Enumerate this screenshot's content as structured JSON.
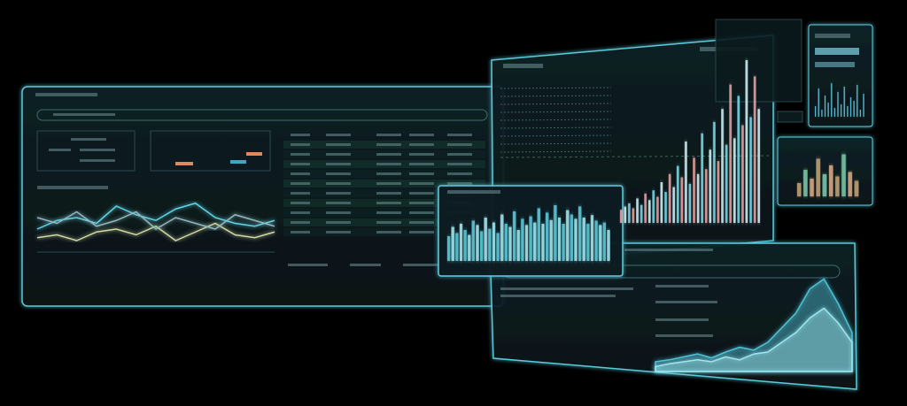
{
  "panels": {
    "main_bars": {
      "ylim": [
        0,
        100
      ],
      "colors": [
        "#f0a8a8",
        "#d8fbff",
        "#7fe3f0"
      ],
      "values": [
        8,
        10,
        12,
        9,
        15,
        11,
        18,
        14,
        20,
        16,
        25,
        19,
        30,
        22,
        35,
        28,
        50,
        24,
        40,
        30,
        55,
        33,
        45,
        62,
        38,
        70,
        48,
        85,
        52,
        78,
        60,
        100,
        65,
        90,
        70
      ]
    },
    "mid_bars": {
      "ylim": [
        0,
        100
      ],
      "colors": [
        "#5fd4e6",
        "#a9f2fa"
      ],
      "values": [
        40,
        55,
        45,
        60,
        50,
        42,
        65,
        58,
        48,
        70,
        52,
        62,
        45,
        75,
        60,
        55,
        80,
        50,
        68,
        58,
        72,
        62,
        85,
        60,
        78,
        66,
        90,
        70,
        60,
        82,
        75,
        68,
        88,
        70,
        60,
        74,
        65,
        58,
        62,
        50
      ]
    },
    "side_bars": {
      "ylim": [
        0,
        100
      ],
      "colors": [
        "#c8a878",
        "#7fd0b0",
        "#e0b08a"
      ],
      "values": [
        30,
        60,
        40,
        85,
        50,
        70,
        45,
        95,
        55,
        35
      ]
    },
    "tiny_bars": {
      "ylim": [
        0,
        100
      ],
      "colors": [
        "#5fd4e6"
      ],
      "values": [
        30,
        80,
        20,
        60,
        40,
        95,
        25,
        70,
        35,
        85,
        30,
        55,
        45,
        90,
        20,
        65
      ]
    },
    "left_lines": {
      "ylim": [
        0,
        100
      ],
      "colors": [
        "#5fd4e6",
        "#cfd8a0",
        "#8fb8c0"
      ],
      "series": [
        {
          "values": [
            40,
            55,
            60,
            50,
            80,
            65,
            55,
            75,
            85,
            60,
            50,
            45,
            55
          ]
        },
        {
          "values": [
            25,
            30,
            20,
            35,
            40,
            30,
            45,
            20,
            35,
            50,
            30,
            25,
            35
          ]
        },
        {
          "values": [
            60,
            50,
            70,
            45,
            55,
            70,
            40,
            60,
            50,
            40,
            65,
            55,
            45
          ]
        }
      ]
    },
    "area": {
      "ylim": [
        0,
        100
      ],
      "colors": [
        "#4fc3d6",
        "#9ee6f0"
      ],
      "series": [
        {
          "values": [
            10,
            12,
            15,
            18,
            14,
            20,
            25,
            22,
            30,
            45,
            60,
            85,
            95,
            70,
            40
          ]
        },
        {
          "values": [
            5,
            8,
            10,
            12,
            10,
            15,
            12,
            18,
            20,
            30,
            40,
            55,
            65,
            50,
            30
          ]
        }
      ]
    }
  }
}
